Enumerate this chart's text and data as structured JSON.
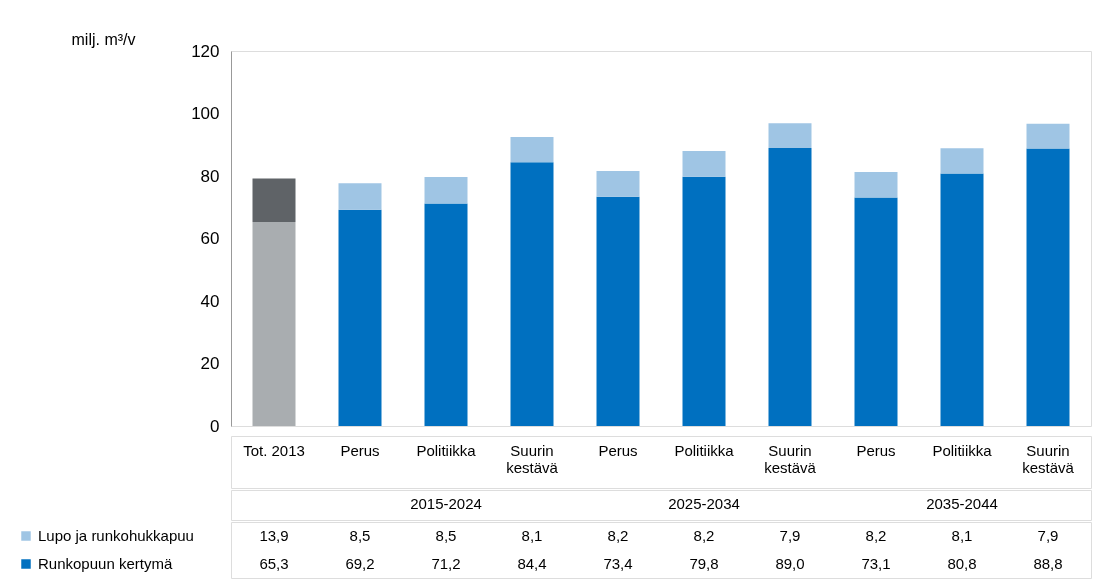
{
  "chart_data": {
    "type": "bar",
    "stacked": true,
    "ylabel": "milj. m³/v",
    "ylim": [
      0,
      120
    ],
    "yticks": [
      0,
      20,
      40,
      60,
      80,
      100,
      120
    ],
    "grid": false,
    "legend": "bottom",
    "categories": [
      "Tot. 2013",
      "Perus",
      "Politiikka",
      "Suurin kestävä",
      "Perus",
      "Politiikka",
      "Suurin kestävä",
      "Perus",
      "Politiikka",
      "Suurin kestävä"
    ],
    "annotations": [
      "2015-2024",
      "2025-2034",
      "2035-2044"
    ],
    "series": [
      {
        "name": "Runkopuun kertymä",
        "color": "#0070c0",
        "colors": [
          "#a9adb0",
          "#0070c0",
          "#0070c0",
          "#0070c0",
          "#0070c0",
          "#0070c0",
          "#0070c0",
          "#0070c0",
          "#0070c0",
          "#0070c0"
        ],
        "values": [
          65.3,
          69.2,
          71.2,
          84.4,
          73.4,
          79.8,
          89.0,
          73.1,
          80.8,
          88.8
        ],
        "value_labels": [
          "65,3",
          "69,2",
          "71,2",
          "84,4",
          "73,4",
          "79,8",
          "89,0",
          "73,1",
          "80,8",
          "88,8"
        ]
      },
      {
        "name": "Lupo ja runkohukkapuu",
        "color": "#9fc5e4",
        "colors": [
          "#5f6367",
          "#9fc5e4",
          "#9fc5e4",
          "#9fc5e4",
          "#9fc5e4",
          "#9fc5e4",
          "#9fc5e4",
          "#9fc5e4",
          "#9fc5e4",
          "#9fc5e4"
        ],
        "values": [
          13.9,
          8.5,
          8.5,
          8.1,
          8.2,
          8.2,
          7.9,
          8.2,
          8.1,
          7.9
        ],
        "value_labels": [
          "13,9",
          "8,5",
          "8,5",
          "8,1",
          "8,2",
          "8,2",
          "7,9",
          "8,2",
          "8,1",
          "7,9"
        ]
      }
    ]
  }
}
